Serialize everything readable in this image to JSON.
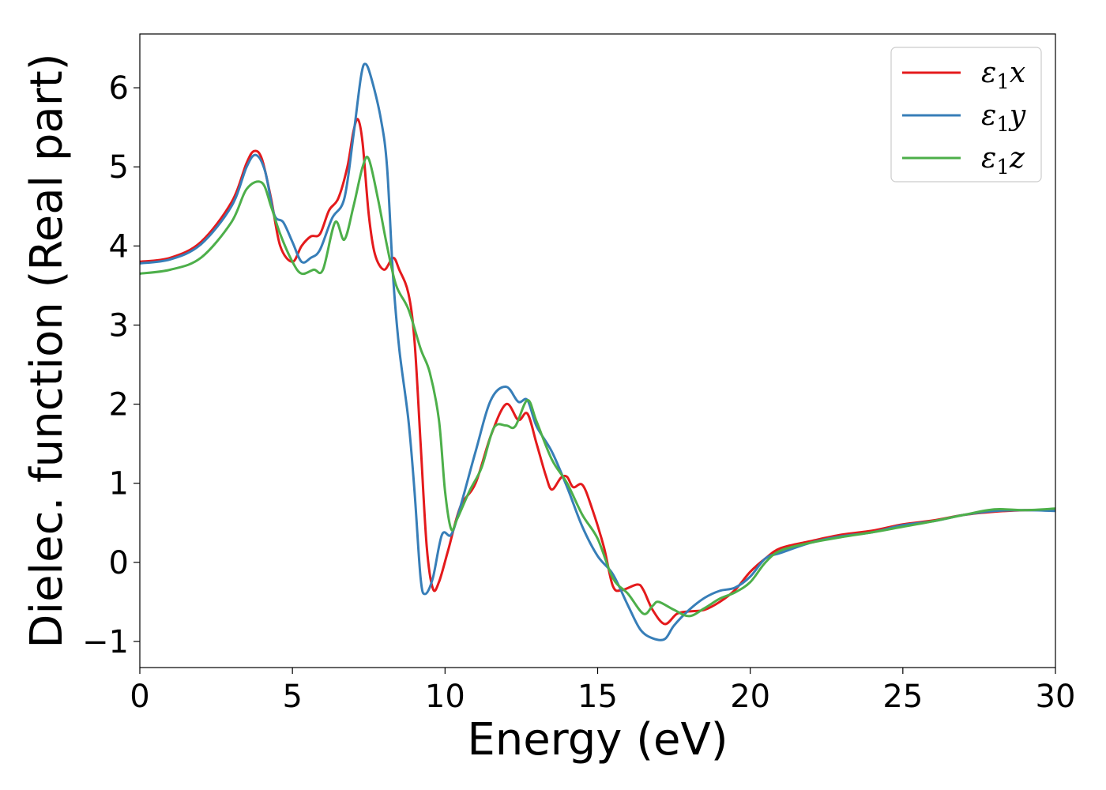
{
  "chart_data": {
    "type": "line",
    "xlabel": "Energy (eV)",
    "ylabel": "Dielec. function (Real part)",
    "xlim": [
      0,
      30
    ],
    "ylim": [
      -1.33,
      6.68
    ],
    "xticks": [
      0,
      5,
      10,
      15,
      20,
      25,
      30
    ],
    "xtick_labels": [
      "0",
      "5",
      "10",
      "15",
      "20",
      "25",
      "30"
    ],
    "yticks": [
      -1,
      0,
      1,
      2,
      3,
      4,
      5,
      6
    ],
    "ytick_labels": [
      "−1",
      "0",
      "1",
      "2",
      "3",
      "4",
      "5",
      "6"
    ],
    "grid": false,
    "legend_position": "top-right",
    "colors": {
      "x": "#e41a1c",
      "y": "#377eb8",
      "z": "#4daf4a",
      "axes": "#000000",
      "background": "#ffffff"
    },
    "series": [
      {
        "name": "ε1x",
        "legend": {
          "base": "ε",
          "sub": "1",
          "suffix": "x"
        },
        "color": "#e41a1c",
        "points": [
          [
            0,
            3.8
          ],
          [
            1,
            3.85
          ],
          [
            2,
            4.05
          ],
          [
            3,
            4.55
          ],
          [
            3.5,
            5.05
          ],
          [
            3.75,
            5.2
          ],
          [
            4,
            5.1
          ],
          [
            4.3,
            4.6
          ],
          [
            4.6,
            4.0
          ],
          [
            5,
            3.8
          ],
          [
            5.3,
            4.0
          ],
          [
            5.6,
            4.12
          ],
          [
            5.9,
            4.15
          ],
          [
            6.2,
            4.45
          ],
          [
            6.5,
            4.6
          ],
          [
            6.8,
            5.0
          ],
          [
            7.0,
            5.45
          ],
          [
            7.15,
            5.6
          ],
          [
            7.3,
            5.3
          ],
          [
            7.5,
            4.4
          ],
          [
            7.7,
            3.9
          ],
          [
            8.0,
            3.7
          ],
          [
            8.3,
            3.85
          ],
          [
            8.5,
            3.7
          ],
          [
            8.8,
            3.4
          ],
          [
            9.0,
            2.8
          ],
          [
            9.2,
            1.5
          ],
          [
            9.4,
            0.2
          ],
          [
            9.6,
            -0.33
          ],
          [
            9.8,
            -0.25
          ],
          [
            10.1,
            0.15
          ],
          [
            10.5,
            0.7
          ],
          [
            11,
            1.0
          ],
          [
            11.5,
            1.6
          ],
          [
            12,
            2.0
          ],
          [
            12.4,
            1.8
          ],
          [
            12.7,
            1.88
          ],
          [
            13,
            1.5
          ],
          [
            13.3,
            1.1
          ],
          [
            13.5,
            0.92
          ],
          [
            13.8,
            1.07
          ],
          [
            14.0,
            1.08
          ],
          [
            14.2,
            0.95
          ],
          [
            14.5,
            0.98
          ],
          [
            14.8,
            0.7
          ],
          [
            15.2,
            0.2
          ],
          [
            15.5,
            -0.3
          ],
          [
            15.8,
            -0.35
          ],
          [
            16.3,
            -0.28
          ],
          [
            16.5,
            -0.35
          ],
          [
            16.8,
            -0.6
          ],
          [
            17.2,
            -0.78
          ],
          [
            17.6,
            -0.65
          ],
          [
            18,
            -0.62
          ],
          [
            18.5,
            -0.6
          ],
          [
            19,
            -0.5
          ],
          [
            19.5,
            -0.35
          ],
          [
            20,
            -0.12
          ],
          [
            20.5,
            0.05
          ],
          [
            21,
            0.18
          ],
          [
            22,
            0.27
          ],
          [
            23,
            0.35
          ],
          [
            24,
            0.4
          ],
          [
            25,
            0.48
          ],
          [
            26,
            0.53
          ],
          [
            27,
            0.6
          ],
          [
            28,
            0.64
          ],
          [
            29,
            0.66
          ],
          [
            30,
            0.66
          ]
        ]
      },
      {
        "name": "ε1y",
        "legend": {
          "base": "ε",
          "sub": "1",
          "suffix": "y"
        },
        "color": "#377eb8",
        "points": [
          [
            0,
            3.78
          ],
          [
            1,
            3.83
          ],
          [
            2,
            4.02
          ],
          [
            3,
            4.5
          ],
          [
            3.5,
            5.0
          ],
          [
            3.8,
            5.15
          ],
          [
            4.1,
            4.95
          ],
          [
            4.4,
            4.4
          ],
          [
            4.7,
            4.3
          ],
          [
            5,
            4.05
          ],
          [
            5.3,
            3.8
          ],
          [
            5.6,
            3.85
          ],
          [
            5.9,
            3.95
          ],
          [
            6.3,
            4.35
          ],
          [
            6.7,
            4.6
          ],
          [
            7.0,
            5.4
          ],
          [
            7.25,
            6.15
          ],
          [
            7.4,
            6.3
          ],
          [
            7.6,
            6.1
          ],
          [
            7.9,
            5.6
          ],
          [
            8.1,
            5.0
          ],
          [
            8.3,
            3.6
          ],
          [
            8.5,
            2.7
          ],
          [
            8.8,
            1.8
          ],
          [
            9.0,
            0.9
          ],
          [
            9.2,
            -0.2
          ],
          [
            9.35,
            -0.4
          ],
          [
            9.6,
            -0.2
          ],
          [
            9.9,
            0.35
          ],
          [
            10.2,
            0.35
          ],
          [
            10.5,
            0.7
          ],
          [
            11,
            1.4
          ],
          [
            11.5,
            2.05
          ],
          [
            12,
            2.22
          ],
          [
            12.4,
            2.03
          ],
          [
            12.7,
            2.05
          ],
          [
            13,
            1.72
          ],
          [
            13.5,
            1.4
          ],
          [
            14,
            0.95
          ],
          [
            14.5,
            0.45
          ],
          [
            15,
            0.08
          ],
          [
            15.5,
            -0.15
          ],
          [
            16,
            -0.55
          ],
          [
            16.4,
            -0.85
          ],
          [
            16.8,
            -0.96
          ],
          [
            17.2,
            -0.97
          ],
          [
            17.5,
            -0.8
          ],
          [
            18,
            -0.6
          ],
          [
            18.5,
            -0.45
          ],
          [
            19,
            -0.36
          ],
          [
            19.5,
            -0.32
          ],
          [
            20,
            -0.18
          ],
          [
            20.5,
            0.05
          ],
          [
            21,
            0.12
          ],
          [
            22,
            0.25
          ],
          [
            23,
            0.33
          ],
          [
            24,
            0.38
          ],
          [
            25,
            0.47
          ],
          [
            26,
            0.52
          ],
          [
            27,
            0.6
          ],
          [
            28,
            0.65
          ],
          [
            29,
            0.66
          ],
          [
            30,
            0.65
          ]
        ]
      },
      {
        "name": "ε1z",
        "legend": {
          "base": "ε",
          "sub": "1",
          "suffix": "z"
        },
        "color": "#4daf4a",
        "points": [
          [
            0,
            3.65
          ],
          [
            1,
            3.7
          ],
          [
            2,
            3.85
          ],
          [
            3,
            4.3
          ],
          [
            3.5,
            4.72
          ],
          [
            4,
            4.8
          ],
          [
            4.3,
            4.5
          ],
          [
            4.6,
            4.15
          ],
          [
            5,
            3.8
          ],
          [
            5.3,
            3.65
          ],
          [
            5.7,
            3.7
          ],
          [
            6.0,
            3.7
          ],
          [
            6.4,
            4.3
          ],
          [
            6.7,
            4.08
          ],
          [
            7.0,
            4.5
          ],
          [
            7.3,
            5.0
          ],
          [
            7.5,
            5.1
          ],
          [
            7.8,
            4.6
          ],
          [
            8.1,
            4.0
          ],
          [
            8.4,
            3.5
          ],
          [
            8.8,
            3.2
          ],
          [
            9.2,
            2.7
          ],
          [
            9.5,
            2.4
          ],
          [
            9.8,
            1.8
          ],
          [
            10.0,
            0.9
          ],
          [
            10.2,
            0.42
          ],
          [
            10.4,
            0.55
          ],
          [
            10.8,
            0.9
          ],
          [
            11.2,
            1.2
          ],
          [
            11.6,
            1.7
          ],
          [
            12.0,
            1.73
          ],
          [
            12.3,
            1.72
          ],
          [
            12.7,
            2.05
          ],
          [
            13,
            1.78
          ],
          [
            13.5,
            1.3
          ],
          [
            14,
            1.0
          ],
          [
            14.5,
            0.6
          ],
          [
            15,
            0.3
          ],
          [
            15.5,
            -0.2
          ],
          [
            16,
            -0.4
          ],
          [
            16.5,
            -0.65
          ],
          [
            16.8,
            -0.55
          ],
          [
            17.0,
            -0.5
          ],
          [
            17.5,
            -0.6
          ],
          [
            18,
            -0.68
          ],
          [
            18.5,
            -0.58
          ],
          [
            19,
            -0.46
          ],
          [
            19.5,
            -0.38
          ],
          [
            20,
            -0.25
          ],
          [
            20.5,
            0.0
          ],
          [
            21,
            0.15
          ],
          [
            22,
            0.25
          ],
          [
            23,
            0.32
          ],
          [
            24,
            0.38
          ],
          [
            25,
            0.45
          ],
          [
            26,
            0.52
          ],
          [
            27,
            0.6
          ],
          [
            28,
            0.67
          ],
          [
            29,
            0.66
          ],
          [
            30,
            0.68
          ]
        ]
      }
    ]
  }
}
